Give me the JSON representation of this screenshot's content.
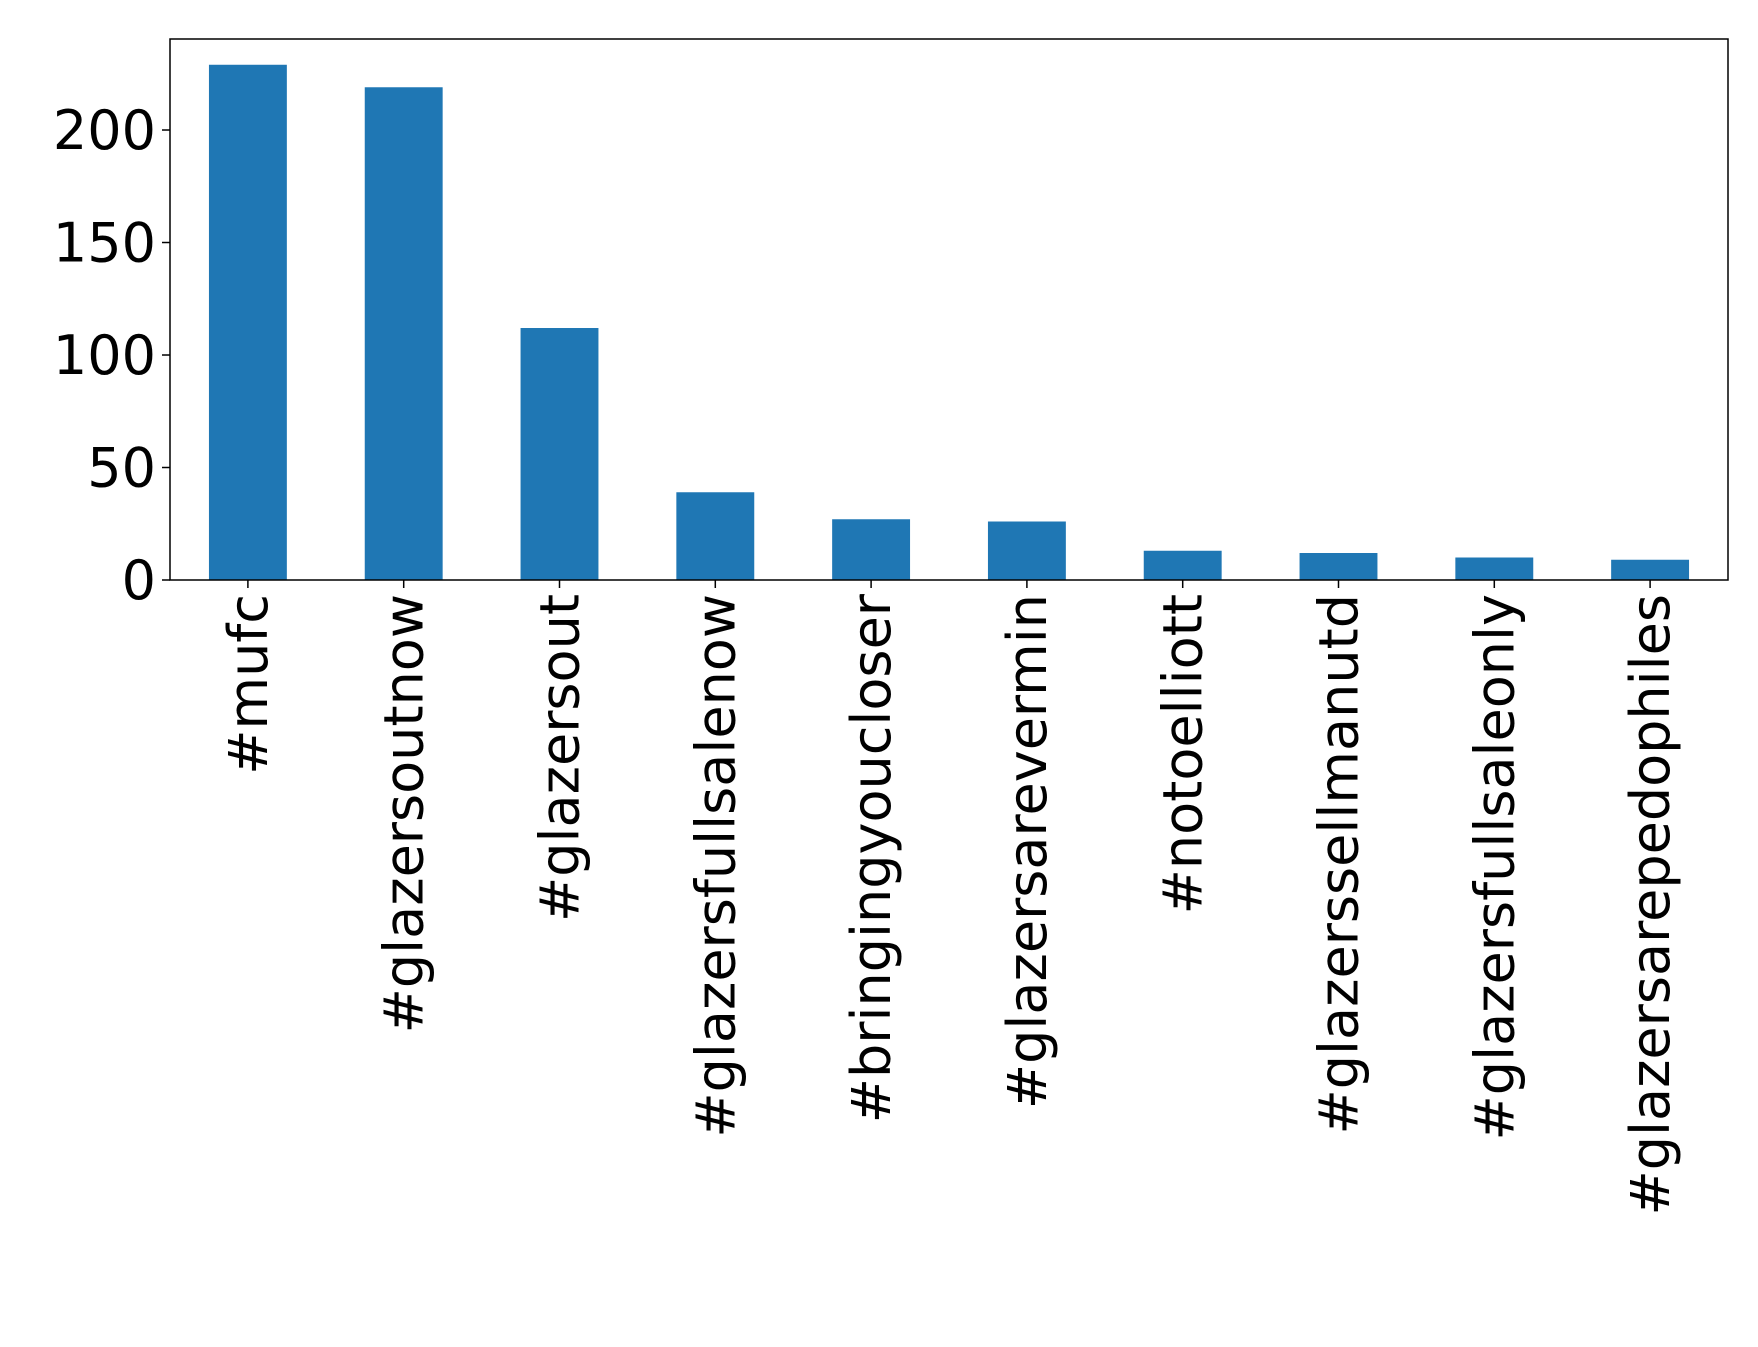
{
  "chart_data": {
    "type": "bar",
    "categories": [
      "#mufc",
      "#glazersoutnow",
      "#glazersout",
      "#glazersfullsalenow",
      "#bringingyoucloser",
      "#glazersarevermin",
      "#notoelliott",
      "#glazerssellmanutd",
      "#glazersfullsaleonly",
      "#glazersarepedophiles"
    ],
    "values": [
      229,
      219,
      112,
      39,
      27,
      26,
      13,
      12,
      10,
      9
    ],
    "color": "#1f77b4",
    "ylim": [
      0,
      240.45
    ],
    "yticks": [
      0,
      50,
      100,
      150,
      200
    ],
    "grid": false
  }
}
